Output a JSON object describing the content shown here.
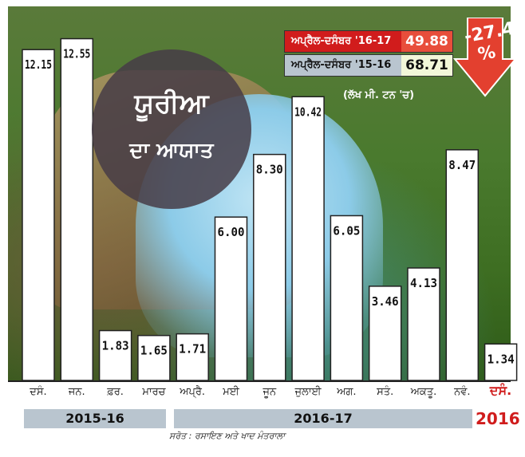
{
  "title": "ਯੂਰੀਆ",
  "subtitle": "ਦਾ ਆਯਾਤ",
  "unit": "(ਲੱਖ ਮੀ. ਟਨ 'ਚ)",
  "source": "ਸਰੋਤ : ਰਸਾਇਣ ਅਤੇ ਖਾਦ ਮੰਤਰਾਲਾ",
  "change_percent": "-27.4 %",
  "summary": [
    {
      "label": "ਅਪ੍ਰੈਲ-ਦਸੰਬਰ '16-17",
      "value": "49.88"
    },
    {
      "label": "ਅਪ੍ਰੈਲ-ਦਸੰਬਰ '15-16",
      "value": "68.71"
    }
  ],
  "years": {
    "y1": "2015-16",
    "y2": "2016-17",
    "y3": "2016"
  },
  "colors": {
    "accent": "#d01c1c",
    "bar": "#ffffff",
    "band": "#b9c5cf"
  },
  "chart_data": {
    "type": "bar",
    "categories": [
      "ਦਸੰ.",
      "ਜਨ.",
      "ਫ਼ਰ.",
      "ਮਾਰਚ",
      "ਅਪ੍ਰੈ.",
      "ਮਈ",
      "ਜੂਨ",
      "ਜੁਲਾਈ",
      "ਅਗ.",
      "ਸਤੰ.",
      "ਅਕਤੂ.",
      "ਨਵੰ.",
      "ਦਸੰ."
    ],
    "values": [
      12.15,
      12.55,
      1.83,
      1.65,
      1.71,
      6.0,
      8.3,
      10.42,
      6.05,
      3.46,
      4.13,
      8.47,
      1.34
    ],
    "labels": [
      "12.15",
      "12.55",
      "1.83",
      "1.65",
      "1.71",
      "6.00",
      "8.30",
      "10.42",
      "6.05",
      "3.46",
      "4.13",
      "8.47",
      "1.34"
    ],
    "highlight_index": 12,
    "ylim": [
      0,
      12.8
    ],
    "title": "ਯੂਰੀਆ ਦਾ ਆਯਾਤ",
    "xlabel": "",
    "ylabel": "",
    "grid": false,
    "legend": "none"
  }
}
